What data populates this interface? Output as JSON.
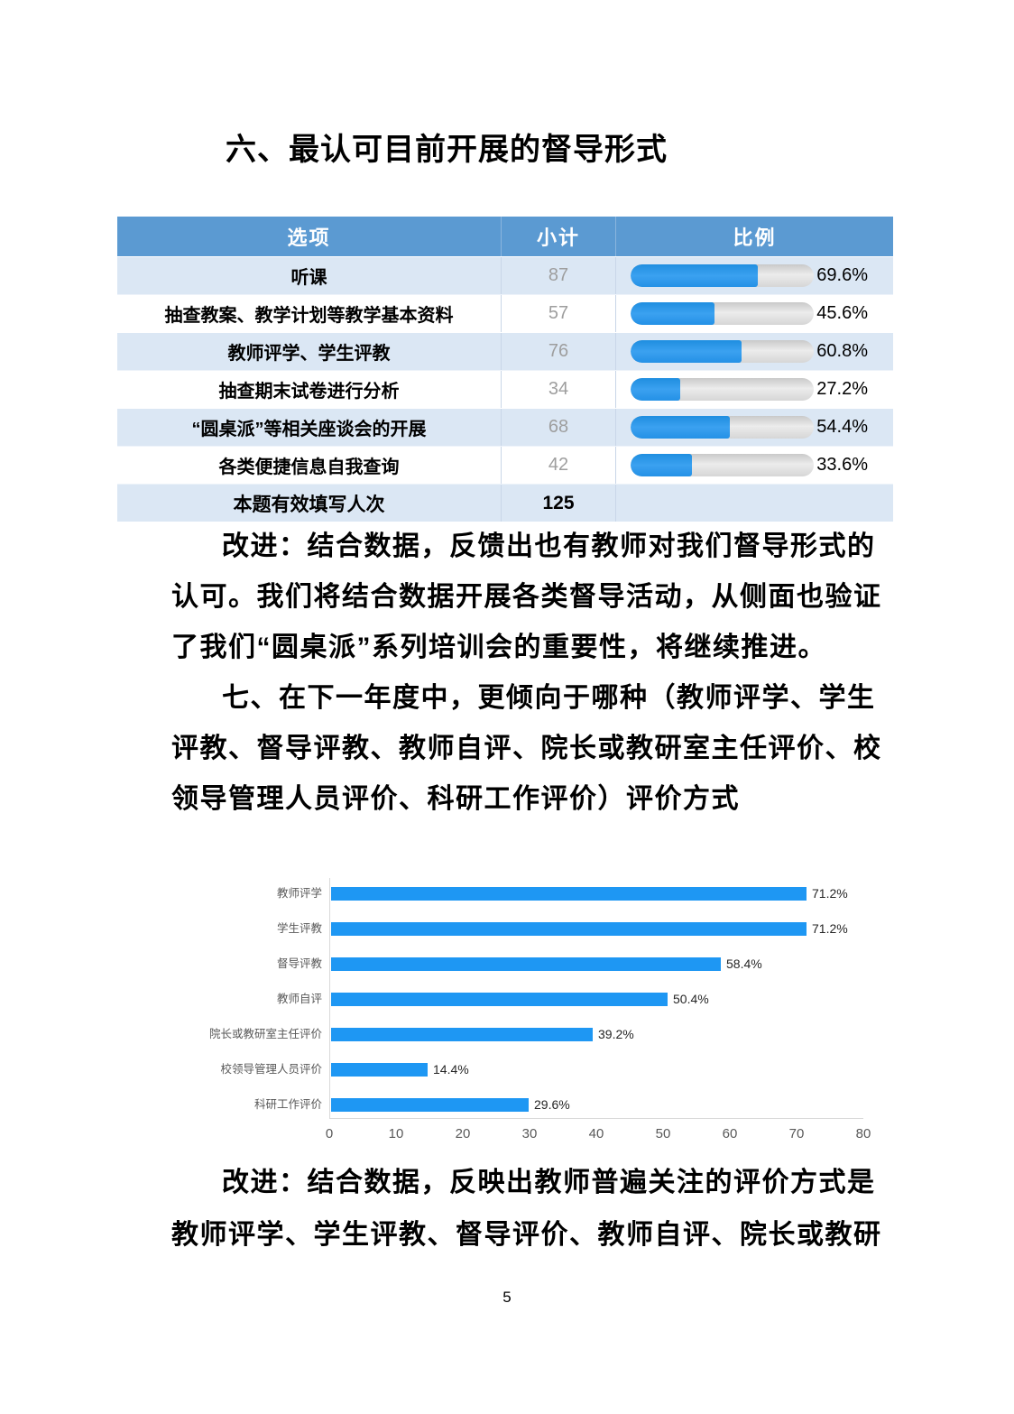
{
  "page": {
    "number": "5"
  },
  "colors": {
    "table_header_bg": "#5b9ad2",
    "table_alt_row_bg": "#dbe7f4",
    "table_bar_fill": "#2f9cf0",
    "table_bar_track": "#d9d9d9",
    "chart_bar": "#1e97f3"
  },
  "section6": {
    "title": "六、最认可目前开展的督导形式",
    "table": {
      "headers": [
        "选项",
        "小计",
        "比例"
      ],
      "rows": [
        {
          "option": "听课",
          "count": "87",
          "pct": "69.6%",
          "value": 69.6
        },
        {
          "option": "抽查教案、教学计划等教学基本资料",
          "count": "57",
          "pct": "45.6%",
          "value": 45.6
        },
        {
          "option": "教师评学、学生评教",
          "count": "76",
          "pct": "60.8%",
          "value": 60.8
        },
        {
          "option": "抽查期末试卷进行分析",
          "count": "34",
          "pct": "27.2%",
          "value": 27.2
        },
        {
          "option": "“圆桌派”等相关座谈会的开展",
          "count": "68",
          "pct": "54.4%",
          "value": 54.4
        },
        {
          "option": "各类便捷信息自我查询",
          "count": "42",
          "pct": "33.6%",
          "value": 33.6
        }
      ],
      "total_row": {
        "option": "本题有效填写人次",
        "count": "125"
      }
    }
  },
  "body_lines": [
    {
      "text": "改进：结合数据，反馈出也有教师对我们督导形式的",
      "indent": true
    },
    {
      "text": "认可。我们将结合数据开展各类督导活动，从侧面也验证",
      "indent": false
    },
    {
      "text": "了我们“圆桌派”系列培训会的重要性，将继续推进。",
      "indent": false
    },
    {
      "text": "七、在下一年度中，更倾向于哪种（教师评学、学生",
      "indent": true
    },
    {
      "text": "评教、督导评教、教师自评、院长或教研室主任评价、校",
      "indent": false
    },
    {
      "text": "领导管理人员评价、科研工作评价）评价方式",
      "indent": false
    }
  ],
  "chart_data": {
    "type": "bar",
    "orientation": "horizontal",
    "categories": [
      "教师评学",
      "学生评教",
      "督导评教",
      "教师自评",
      "院长或教研室主任评价",
      "校领导管理人员评价",
      "科研工作评价"
    ],
    "values": [
      71.2,
      71.2,
      58.4,
      50.4,
      39.2,
      14.4,
      29.6
    ],
    "value_labels": [
      "71.2%",
      "71.2%",
      "58.4%",
      "50.4%",
      "39.2%",
      "14.4%",
      "29.6%"
    ],
    "xlim": [
      0,
      80
    ],
    "xticks": [
      0,
      10,
      20,
      30,
      40,
      50,
      60,
      70,
      80
    ],
    "grid": false,
    "legend": false,
    "title": "",
    "xlabel": "",
    "ylabel": ""
  },
  "closing_lines": [
    {
      "text": "改进：结合数据，反映出教师普遍关注的评价方式是",
      "indent": true
    },
    {
      "text": "教师评学、学生评教、督导评价、教师自评、院长或教研",
      "indent": false
    }
  ]
}
